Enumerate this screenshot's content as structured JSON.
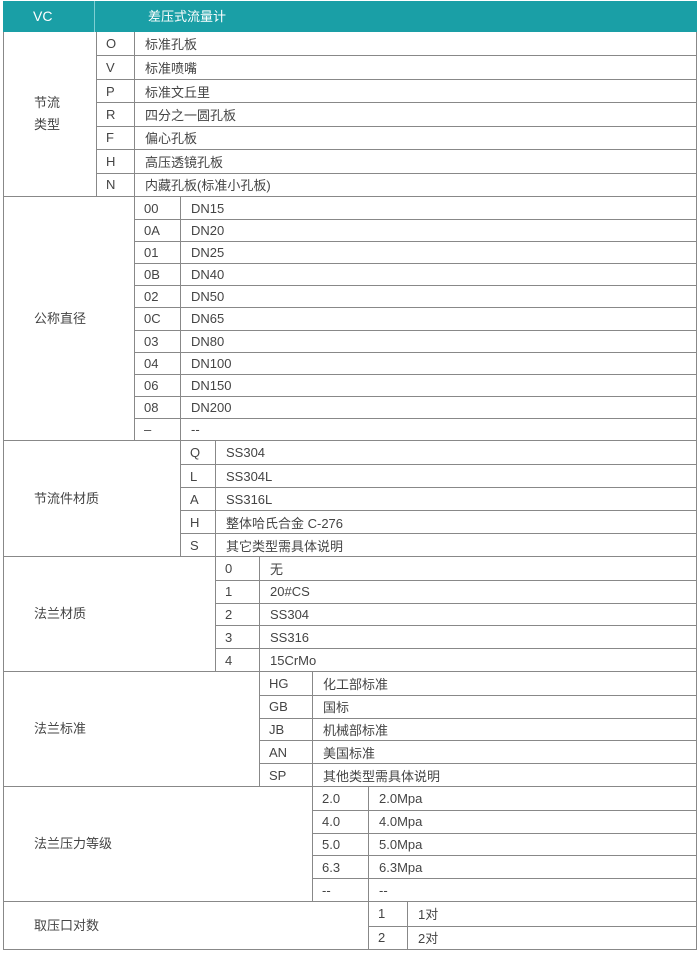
{
  "header": {
    "code": "VC",
    "title": "差压式流量计",
    "color": "#1a9fa6"
  },
  "groups": [
    {
      "label": "节流\n类型",
      "rows": [
        [
          "O",
          "标准孔板"
        ],
        [
          "V",
          "标准喷嘴"
        ],
        [
          "P",
          "标准文丘里"
        ],
        [
          "R",
          "四分之一圆孔板"
        ],
        [
          "F",
          "偏心孔板"
        ],
        [
          "H",
          "高压透镜孔板"
        ],
        [
          "N",
          "内藏孔板(标准小孔板)"
        ]
      ]
    },
    {
      "label": "公称直径",
      "rows": [
        [
          "00",
          "DN15"
        ],
        [
          "0A",
          "DN20"
        ],
        [
          "01",
          "DN25"
        ],
        [
          "0B",
          "DN40"
        ],
        [
          "02",
          "DN50"
        ],
        [
          "0C",
          "DN65"
        ],
        [
          "03",
          "DN80"
        ],
        [
          "04",
          "DN100"
        ],
        [
          "06",
          "DN150"
        ],
        [
          "08",
          "DN200"
        ],
        [
          "–",
          "--"
        ]
      ]
    },
    {
      "label": "节流件材质",
      "rows": [
        [
          "Q",
          "SS304"
        ],
        [
          "L",
          "SS304L"
        ],
        [
          "A",
          "SS316L"
        ],
        [
          "H",
          "整体哈氏合金 C-276"
        ],
        [
          "S",
          "其它类型需具体说明"
        ]
      ]
    },
    {
      "label": "法兰材质",
      "rows": [
        [
          "0",
          "无"
        ],
        [
          "1",
          "20#CS"
        ],
        [
          "2",
          "SS304"
        ],
        [
          "3",
          "SS316"
        ],
        [
          "4",
          "15CrMo"
        ]
      ]
    },
    {
      "label": "法兰标准",
      "rows": [
        [
          "HG",
          "化工部标准"
        ],
        [
          "GB",
          "国标"
        ],
        [
          "JB",
          "机械部标准"
        ],
        [
          "AN",
          "美国标准"
        ],
        [
          "SP",
          "其他类型需具体说明"
        ]
      ]
    },
    {
      "label": "法兰压力等级",
      "rows": [
        [
          "2.0",
          "2.0Mpa"
        ],
        [
          "4.0",
          "4.0Mpa"
        ],
        [
          "5.0",
          "5.0Mpa"
        ],
        [
          "6.3",
          "6.3Mpa"
        ],
        [
          "--",
          "--"
        ]
      ]
    },
    {
      "label": "取压口对数",
      "rows": [
        [
          "1",
          "1对"
        ],
        [
          "2",
          "2对"
        ]
      ]
    }
  ]
}
